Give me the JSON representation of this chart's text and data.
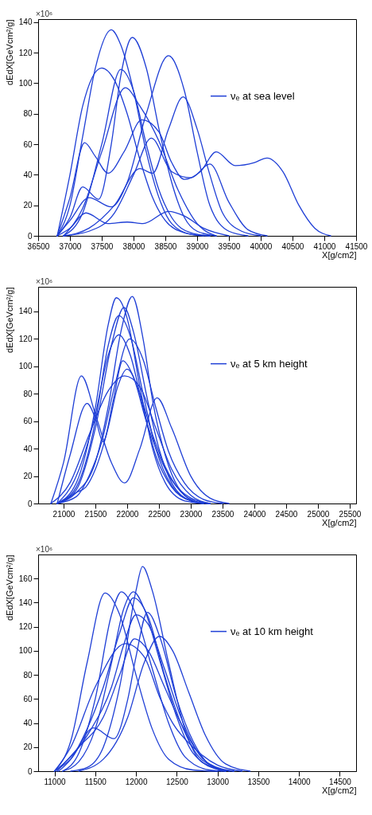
{
  "chart_data": [
    {
      "type": "line",
      "xlabel": "X[g/cm2]",
      "ylabel": "dEdX[GeVcm²/g]",
      "annotations": [
        "×10⁶"
      ],
      "legend": "top right",
      "xlim": [
        36500,
        41500
      ],
      "ylim": [
        0,
        142
      ],
      "xticks": [
        36500,
        37000,
        37500,
        38000,
        38500,
        39000,
        39500,
        40000,
        40500,
        41000,
        41500
      ],
      "yticks": [
        0,
        20,
        40,
        60,
        80,
        100,
        120,
        140
      ],
      "series": [
        {
          "name": "νₑ at sea level",
          "color": "#1f3fd6",
          "x": [
            36800,
            37000,
            37200,
            37400,
            37650,
            37800,
            38000,
            38200,
            38400,
            38600,
            38900,
            39200
          ],
          "values": [
            0,
            20,
            65,
            110,
            135,
            125,
            95,
            55,
            25,
            8,
            1,
            0
          ]
        },
        {
          "color": "#1f3fd6",
          "x": [
            36800,
            37000,
            37200,
            37450,
            37650,
            37800,
            37980,
            38200,
            38400,
            38600,
            38800,
            39000,
            39300
          ],
          "values": [
            0,
            12,
            32,
            24,
            60,
            105,
            130,
            110,
            70,
            35,
            12,
            3,
            0
          ]
        },
        {
          "color": "#1f3fd6",
          "x": [
            36800,
            37000,
            37200,
            37500,
            37700,
            37900,
            38100,
            38300,
            38500,
            38800,
            39100
          ],
          "values": [
            0,
            40,
            85,
            110,
            102,
            80,
            50,
            25,
            10,
            2,
            0
          ]
        },
        {
          "color": "#1f3fd6",
          "x": [
            36800,
            37000,
            37230,
            37400,
            37600,
            37850,
            38130,
            38400,
            38600,
            38800,
            39050,
            39300,
            39600,
            39900,
            40100,
            40350,
            40600,
            40850,
            41100
          ],
          "values": [
            0,
            25,
            61,
            52,
            41,
            55,
            76,
            68,
            48,
            37,
            42,
            55,
            46,
            48,
            51,
            42,
            20,
            5,
            0
          ]
        },
        {
          "color": "#1f3fd6",
          "x": [
            36800,
            37000,
            37300,
            37650,
            37900,
            38200,
            38550,
            38800,
            39000,
            39200,
            39500,
            39800
          ],
          "values": [
            0,
            10,
            25,
            19,
            35,
            80,
            118,
            95,
            55,
            20,
            3,
            0
          ]
        },
        {
          "color": "#1f3fd6",
          "x": [
            36900,
            37200,
            37500,
            37800,
            38000,
            38200,
            38400,
            38600,
            38900,
            39200
          ],
          "values": [
            0,
            15,
            60,
            109,
            95,
            60,
            30,
            12,
            2,
            0
          ]
        },
        {
          "color": "#1f3fd6",
          "x": [
            36900,
            37200,
            37500,
            37870,
            38100,
            38400,
            38700,
            39000,
            39300
          ],
          "values": [
            0,
            18,
            55,
            97,
            85,
            62,
            30,
            8,
            0
          ]
        },
        {
          "color": "#1f3fd6",
          "x": [
            36900,
            37300,
            37700,
            38100,
            38300,
            38550,
            38780,
            39000,
            39200,
            39400,
            39700,
            40000
          ],
          "values": [
            0,
            5,
            20,
            44,
            41,
            70,
            91,
            70,
            40,
            15,
            3,
            0
          ]
        },
        {
          "color": "#1f3fd6",
          "x": [
            36900,
            37300,
            37700,
            38000,
            38280,
            38600,
            38900,
            39200,
            39500,
            39800,
            40100
          ],
          "values": [
            0,
            3,
            15,
            40,
            64,
            42,
            38,
            47,
            22,
            4,
            0
          ]
        },
        {
          "color": "#1f3fd6",
          "x": [
            36800,
            37000,
            37250,
            37600,
            37900,
            38150,
            38550,
            38800,
            39100,
            39500
          ],
          "values": [
            0,
            5,
            15,
            8,
            9,
            8,
            16,
            13,
            5,
            0
          ]
        }
      ]
    },
    {
      "type": "line",
      "xlabel": "X[g/cm2]",
      "ylabel": "dEdX[GeVcm²/g]",
      "annotations": [
        "×10⁶"
      ],
      "legend": "top right",
      "xlim": [
        20600,
        25600
      ],
      "ylim": [
        0,
        158
      ],
      "xticks": [
        21000,
        21500,
        22000,
        22500,
        23000,
        23500,
        24000,
        24500,
        25000,
        25500
      ],
      "yticks": [
        0,
        20,
        40,
        60,
        80,
        100,
        120,
        140
      ],
      "series": [
        {
          "name": "νₑ at 5 km height",
          "color": "#1f3fd6",
          "x": [
            20900,
            21200,
            21500,
            21700,
            21830,
            22000,
            22200,
            22400,
            22600,
            22900,
            23200
          ],
          "values": [
            0,
            15,
            70,
            130,
            150,
            135,
            85,
            40,
            15,
            2,
            0
          ]
        },
        {
          "color": "#1f3fd6",
          "x": [
            20900,
            21200,
            21500,
            21700,
            21900,
            22080,
            22250,
            22400,
            22600,
            22800,
            23100,
            23300
          ],
          "values": [
            0,
            8,
            30,
            70,
            125,
            151,
            120,
            75,
            35,
            12,
            1,
            0
          ]
        },
        {
          "color": "#1f3fd6",
          "x": [
            20900,
            21200,
            21500,
            21750,
            21950,
            22100,
            22300,
            22500,
            22700,
            23000,
            23200
          ],
          "values": [
            0,
            10,
            55,
            115,
            143,
            125,
            80,
            40,
            15,
            2,
            0
          ]
        },
        {
          "color": "#1f3fd6",
          "x": [
            20900,
            21200,
            21500,
            21700,
            21870,
            22050,
            22250,
            22450,
            22700,
            23000,
            23300
          ],
          "values": [
            0,
            12,
            60,
            115,
            137,
            122,
            80,
            40,
            13,
            2,
            0
          ]
        },
        {
          "color": "#1f3fd6",
          "x": [
            20900,
            21200,
            21500,
            21700,
            21870,
            22050,
            22250,
            22450,
            22700,
            23000,
            23300
          ],
          "values": [
            0,
            20,
            65,
            108,
            123,
            108,
            70,
            35,
            12,
            2,
            0
          ]
        },
        {
          "color": "#1f3fd6",
          "x": [
            20900,
            21200,
            21400,
            21600,
            21800,
            22040,
            22250,
            22450,
            22650,
            22900,
            23200,
            23500
          ],
          "values": [
            0,
            5,
            20,
            45,
            85,
            120,
            105,
            70,
            38,
            15,
            3,
            0
          ]
        },
        {
          "color": "#1f3fd6",
          "x": [
            20900,
            21200,
            21350,
            21500,
            21700,
            21850,
            22000,
            22200,
            22400,
            22650,
            22900,
            23200
          ],
          "values": [
            0,
            8,
            12,
            25,
            55,
            85,
            98,
            80,
            50,
            22,
            6,
            0
          ]
        },
        {
          "color": "#1f3fd6",
          "x": [
            20800,
            21100,
            21400,
            21700,
            21960,
            22200,
            22450,
            22700,
            23000,
            23300
          ],
          "values": [
            0,
            15,
            50,
            82,
            93,
            85,
            55,
            25,
            6,
            0
          ]
        },
        {
          "color": "#1f3fd6",
          "x": [
            20800,
            21000,
            21280,
            21500,
            21750,
            21960,
            22200,
            22470,
            22700,
            23000,
            23300,
            23600
          ],
          "values": [
            0,
            30,
            93,
            65,
            30,
            15,
            40,
            77,
            55,
            20,
            4,
            0
          ]
        },
        {
          "color": "#1f3fd6",
          "x": [
            20900,
            21100,
            21370,
            21500,
            21620,
            21780,
            21930,
            22100,
            22300,
            22500,
            22700,
            23000,
            23300
          ],
          "values": [
            0,
            35,
            73,
            62,
            45,
            75,
            104,
            92,
            60,
            35,
            17,
            4,
            0
          ]
        }
      ]
    },
    {
      "type": "line",
      "xlabel": "X[g/cm2]",
      "ylabel": "dEdX[GeVcm²/g]",
      "annotations": [
        "×10⁶"
      ],
      "legend": "top right",
      "xlim": [
        10800,
        14700
      ],
      "ylim": [
        0,
        180
      ],
      "xticks": [
        11000,
        11500,
        12000,
        12500,
        13000,
        13500,
        14000,
        14500
      ],
      "yticks": [
        0,
        20,
        40,
        60,
        80,
        100,
        120,
        140,
        160
      ],
      "series": [
        {
          "name": "νₑ at 10 km height",
          "color": "#1f3fd6",
          "x": [
            11000,
            11200,
            11400,
            11620,
            11800,
            12000,
            12200,
            12400,
            12700,
            13000
          ],
          "values": [
            0,
            25,
            90,
            148,
            130,
            80,
            35,
            10,
            1,
            0
          ]
        },
        {
          "color": "#1f3fd6",
          "x": [
            11100,
            11300,
            11500,
            11700,
            11820,
            12000,
            12200,
            12400,
            12600,
            12900,
            13100
          ],
          "values": [
            0,
            15,
            60,
            130,
            149,
            130,
            85,
            40,
            12,
            1,
            0
          ]
        },
        {
          "color": "#1f3fd6",
          "x": [
            11200,
            11400,
            11600,
            11800,
            12000,
            12080,
            12200,
            12400,
            12600,
            12800,
            13100
          ],
          "values": [
            0,
            3,
            20,
            70,
            150,
            170,
            150,
            90,
            35,
            8,
            0
          ]
        },
        {
          "color": "#1f3fd6",
          "x": [
            11100,
            11300,
            11500,
            11700,
            11850,
            11970,
            12100,
            12300,
            12500,
            12700,
            13000,
            13200
          ],
          "values": [
            0,
            8,
            35,
            90,
            135,
            149,
            135,
            90,
            45,
            15,
            2,
            0
          ]
        },
        {
          "color": "#1f3fd6",
          "x": [
            11050,
            11200,
            11400,
            11600,
            11800,
            11970,
            12150,
            12350,
            12550,
            12800,
            13150
          ],
          "values": [
            0,
            10,
            35,
            70,
            115,
            144,
            128,
            80,
            40,
            10,
            0
          ]
        },
        {
          "color": "#1f3fd6",
          "x": [
            11000,
            11200,
            11480,
            11730,
            11900,
            12000,
            12140,
            12300,
            12500,
            12700,
            12900,
            13200
          ],
          "values": [
            0,
            10,
            36,
            27,
            60,
            95,
            132,
            110,
            60,
            25,
            6,
            0
          ]
        },
        {
          "color": "#1f3fd6",
          "x": [
            11000,
            11200,
            11450,
            11700,
            11850,
            12000,
            12150,
            12350,
            12550,
            12800,
            13100
          ],
          "values": [
            0,
            12,
            35,
            70,
            105,
            130,
            122,
            85,
            45,
            12,
            0
          ]
        },
        {
          "color": "#1f3fd6",
          "x": [
            11300,
            11600,
            11900,
            12100,
            12290,
            12450,
            12650,
            12850,
            13100,
            13400
          ],
          "values": [
            0,
            10,
            45,
            90,
            112,
            100,
            65,
            30,
            6,
            0
          ]
        },
        {
          "color": "#1f3fd6",
          "x": [
            11030,
            11300,
            11600,
            11800,
            11980,
            12150,
            12350,
            12550,
            12800,
            13050
          ],
          "values": [
            0,
            20,
            45,
            80,
            110,
            100,
            70,
            40,
            12,
            0
          ]
        },
        {
          "color": "#1f3fd6",
          "x": [
            11000,
            11200,
            11500,
            11870,
            12100,
            12300,
            12450,
            12700,
            13000,
            13300
          ],
          "values": [
            0,
            20,
            70,
            106,
            95,
            60,
            40,
            20,
            5,
            0
          ]
        }
      ]
    }
  ]
}
